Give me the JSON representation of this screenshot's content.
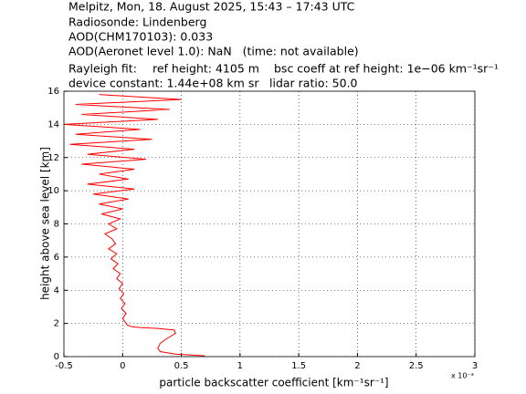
{
  "chart_data": {
    "type": "line",
    "header": [
      "Melpitz, Mon, 18. August 2025, 15:43 – 17:43 UTC",
      "Radiosonde: Lindenberg",
      "AOD(CHM170103): 0.033",
      "AOD(Aeronet level 1.0): NaN   (time: not available)"
    ],
    "info": [
      "Rayleigh fit:",
      "ref height: 4105 m",
      "bsc coeff at ref height: 1e−06 km⁻¹sr⁻¹",
      "device constant: 1.44e+08 km sr",
      "lidar ratio: 50.0"
    ],
    "x_label": "particle backscatter coefficient [km⁻¹sr⁻¹]",
    "x_multiplier": "x 10⁻³",
    "y_label": "height above sea level [km]",
    "xlim": [
      -0.5,
      3
    ],
    "xticks": [
      -0.5,
      0,
      0.5,
      1,
      1.5,
      2,
      2.5,
      3
    ],
    "ylim": [
      0,
      16
    ],
    "yticks": [
      0,
      2,
      4,
      6,
      8,
      10,
      12,
      14,
      16
    ],
    "grid": true,
    "series": [
      {
        "color": "#ff0000",
        "x": [
          0.7,
          0.45,
          0.32,
          0.3,
          0.32,
          0.38,
          0.45,
          0.44,
          0.3,
          0.15,
          0.08,
          0.04,
          0.02,
          0.0,
          0.03,
          -0.01,
          0.02,
          -0.02,
          0.01,
          -0.03,
          0.0,
          -0.05,
          -0.02,
          -0.08,
          -0.04,
          -0.1,
          -0.05,
          -0.12,
          -0.06,
          -0.09,
          -0.15,
          -0.05,
          -0.12,
          -0.02,
          -0.18,
          0.0,
          -0.2,
          0.05,
          -0.25,
          0.1,
          -0.3,
          0.05,
          -0.2,
          0.1,
          -0.35,
          0.2,
          -0.3,
          0.1,
          -0.45,
          0.25,
          -0.4,
          0.15,
          -0.5,
          0.3,
          -0.35,
          0.4,
          -0.4,
          0.5,
          -0.2
        ],
        "y": [
          0.05,
          0.15,
          0.3,
          0.5,
          0.8,
          1.1,
          1.4,
          1.6,
          1.7,
          1.75,
          1.8,
          1.9,
          2.1,
          2.3,
          2.6,
          2.9,
          3.2,
          3.5,
          3.8,
          4.1,
          4.4,
          4.7,
          5.0,
          5.3,
          5.6,
          5.9,
          6.2,
          6.5,
          6.8,
          7.1,
          7.4,
          7.7,
          8.0,
          8.3,
          8.6,
          8.9,
          9.2,
          9.5,
          9.8,
          10.1,
          10.4,
          10.7,
          11.0,
          11.3,
          11.6,
          11.9,
          12.2,
          12.5,
          12.8,
          13.1,
          13.4,
          13.7,
          14.0,
          14.3,
          14.6,
          14.9,
          15.2,
          15.5,
          15.8
        ]
      }
    ]
  }
}
